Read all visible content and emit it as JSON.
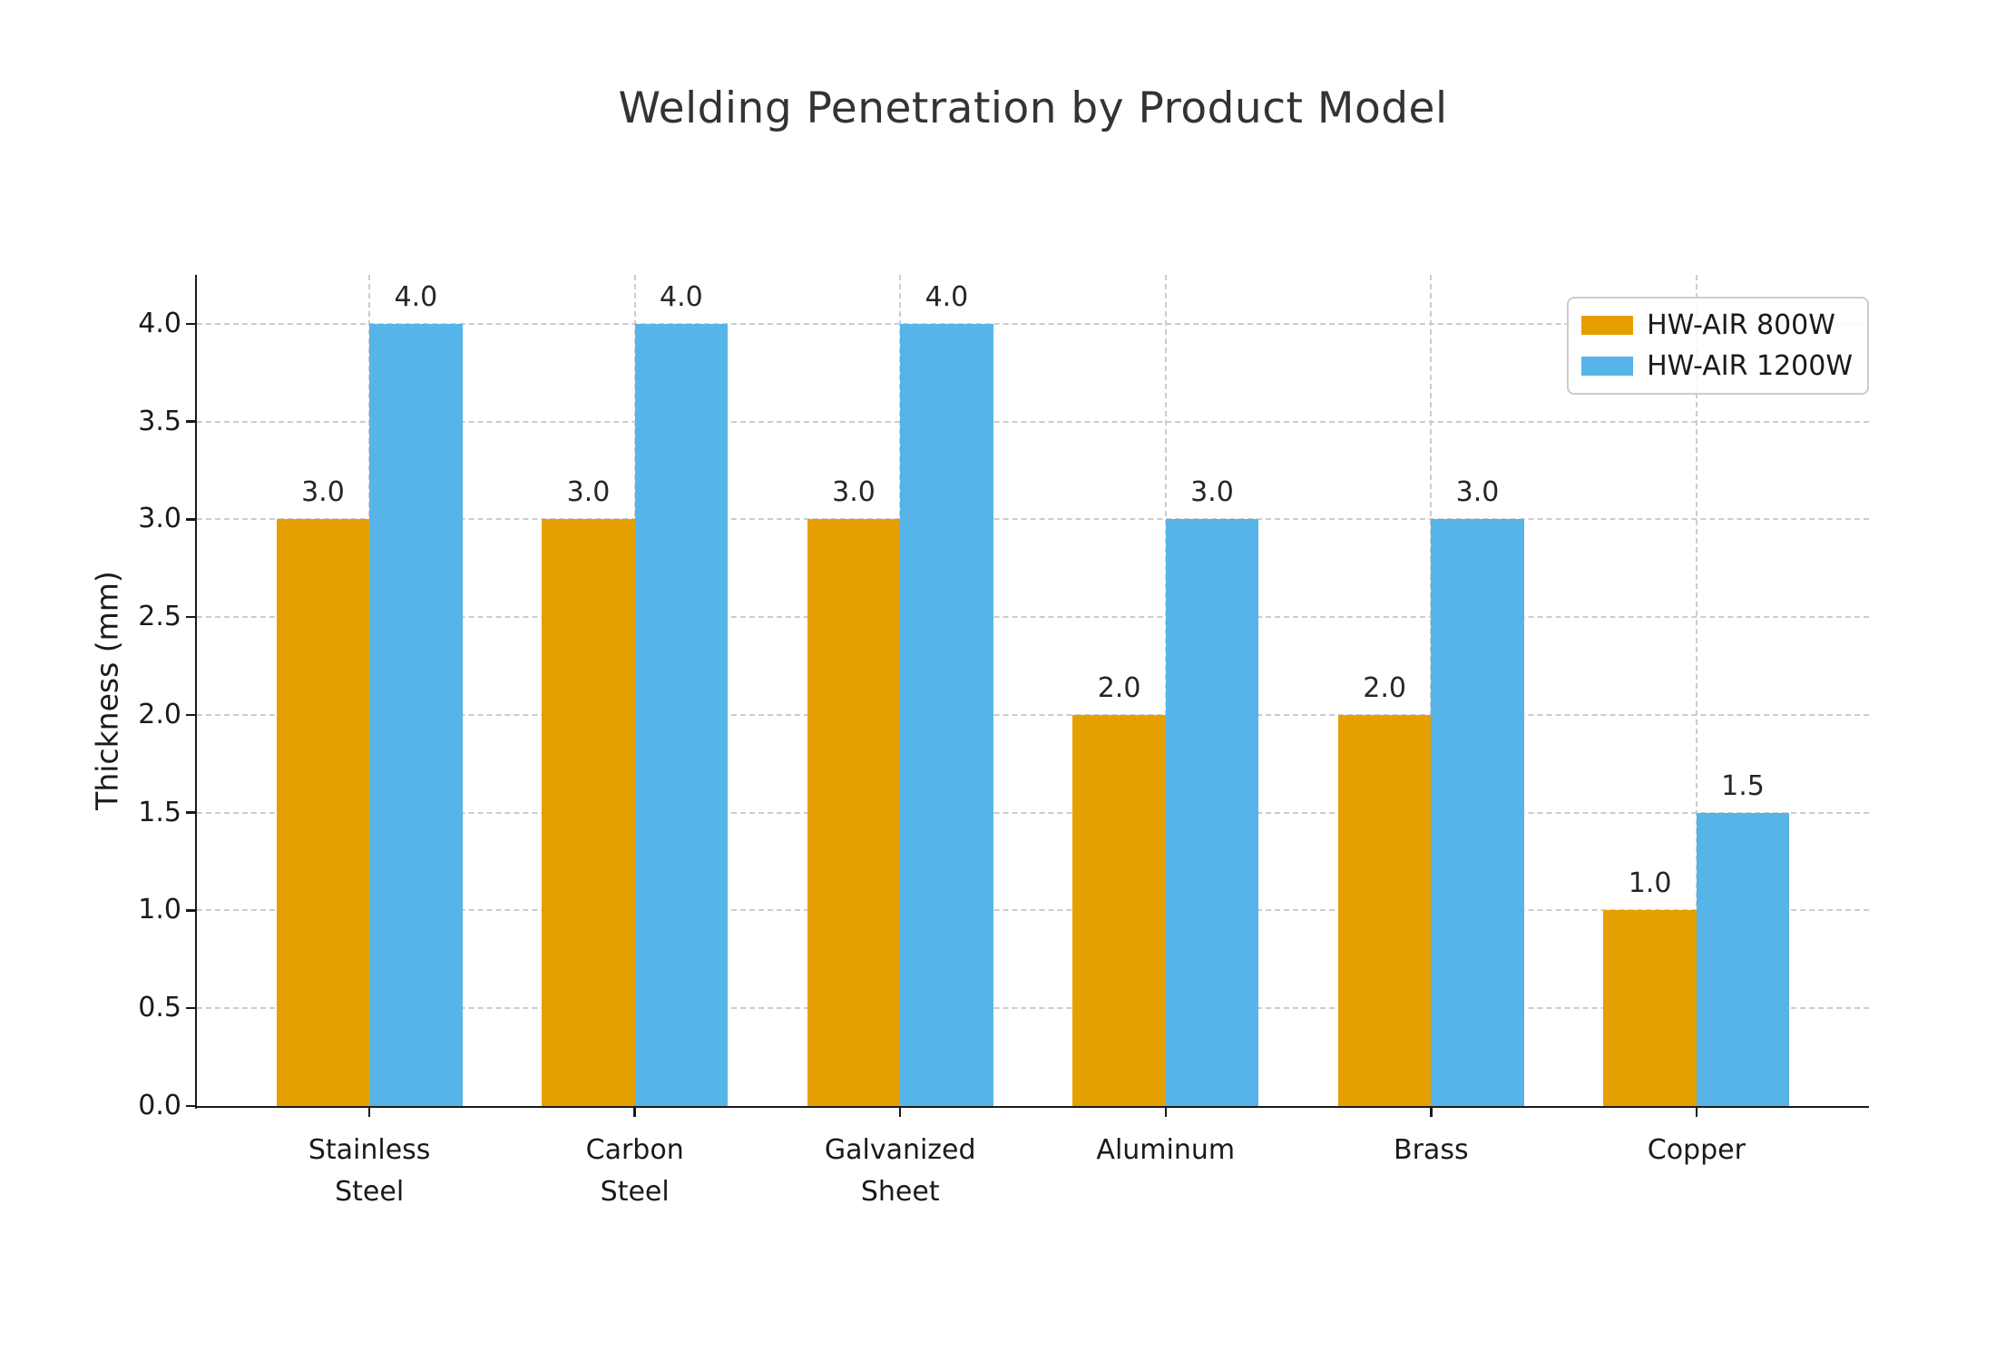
{
  "chart_data": {
    "type": "bar",
    "title": "Welding Penetration by Product Model",
    "xlabel": "",
    "ylabel": "Thickness (mm)",
    "categories": [
      "Stainless\nSteel",
      "Carbon\nSteel",
      "Galvanized\nSheet",
      "Aluminum",
      "Brass",
      "Copper"
    ],
    "series": [
      {
        "name": "HW-AIR 800W",
        "color": "#E69F00",
        "values": [
          3.0,
          3.0,
          3.0,
          2.0,
          2.0,
          1.0
        ],
        "value_labels": [
          "3.0",
          "3.0",
          "3.0",
          "2.0",
          "2.0",
          "1.0"
        ]
      },
      {
        "name": "HW-AIR 1200W",
        "color": "#56B4E9",
        "values": [
          4.0,
          4.0,
          4.0,
          3.0,
          3.0,
          1.5
        ],
        "value_labels": [
          "4.0",
          "4.0",
          "4.0",
          "3.0",
          "3.0",
          "1.5"
        ]
      }
    ],
    "ytick_labels": [
      "0.0",
      "0.5",
      "1.0",
      "1.5",
      "2.0",
      "2.5",
      "3.0",
      "3.5",
      "4.0"
    ],
    "ytick_values": [
      0,
      0.5,
      1.0,
      1.5,
      2.0,
      2.5,
      3.0,
      3.5,
      4.0
    ],
    "ylim": [
      0,
      4.25
    ],
    "xlim": [
      -0.65,
      5.65
    ],
    "bar_width_ratio": 0.35,
    "grid": "dashed, horizontal and vertical, axisbelow",
    "legend_position": "upper right",
    "colors": {
      "series_800w": "#E69F00",
      "series_1200w": "#56B4E9",
      "grid": "#cccccc",
      "axis": "#1a1a1a",
      "text": "#1a1a1a",
      "title": "#333333",
      "legend_border": "#cccccc"
    }
  }
}
